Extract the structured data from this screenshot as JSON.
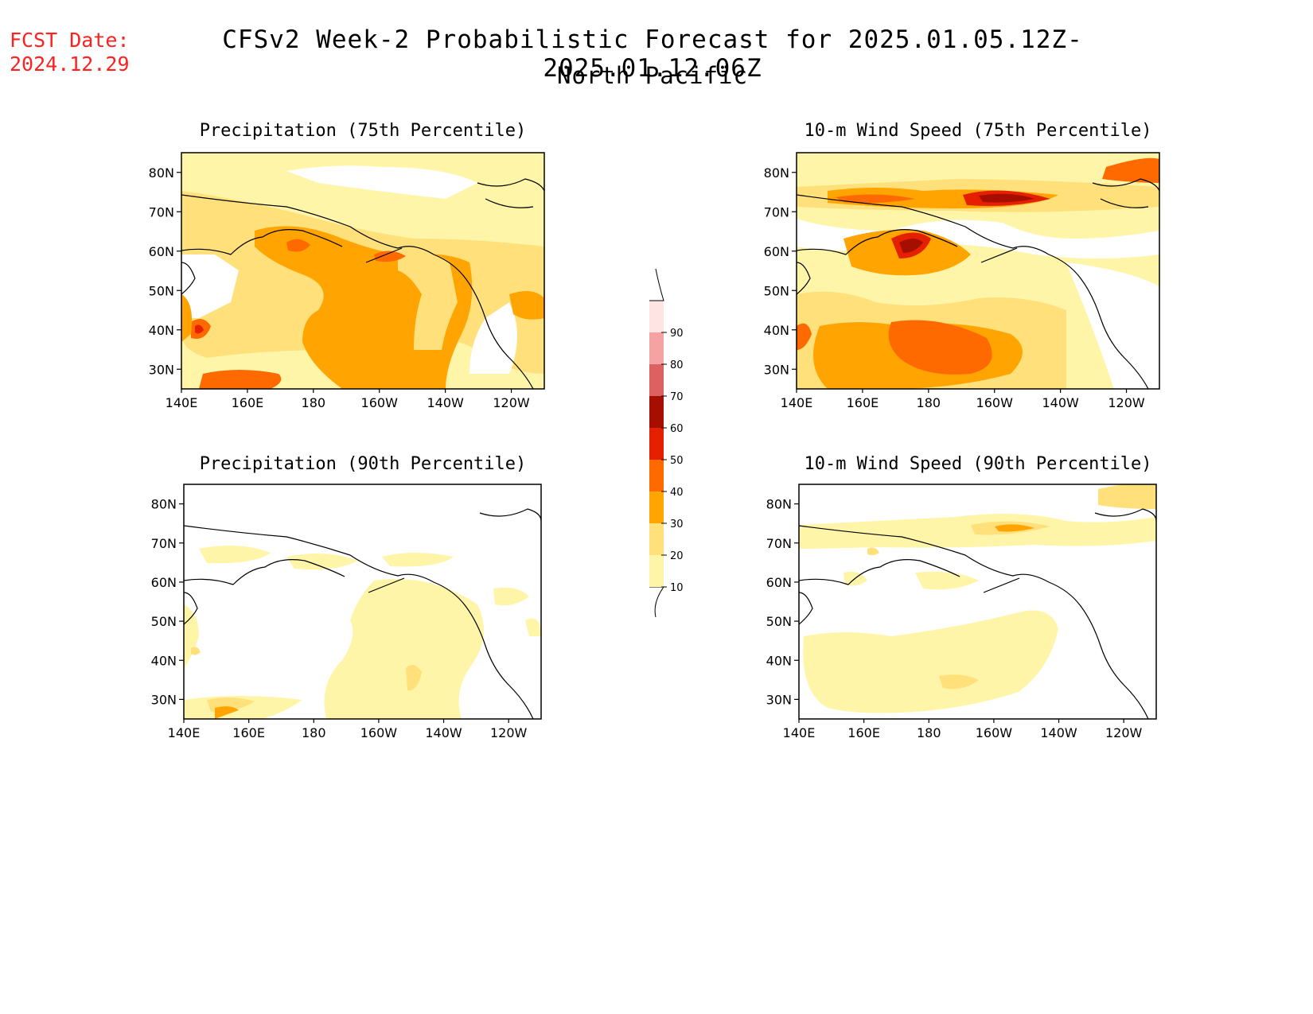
{
  "header": {
    "fcst_label": "FCST Date:",
    "fcst_date": "2024.12.29",
    "title": "CFSv2 Week-2 Probabilistic Forecast for 2025.01.05.12Z-2025.01.12.06Z",
    "subtitle": "North Pacific"
  },
  "axes": {
    "lat_labels": [
      "80N",
      "70N",
      "60N",
      "50N",
      "40N",
      "30N"
    ],
    "lon_labels": [
      "140E",
      "160E",
      "180",
      "160W",
      "140W",
      "120W"
    ]
  },
  "panels": [
    {
      "title": "Precipitation (75th Percentile)"
    },
    {
      "title": "10-m Wind Speed (75th Percentile)"
    },
    {
      "title": "Precipitation (90th Percentile)"
    },
    {
      "title": "10-m Wind Speed (90th Percentile)"
    }
  ],
  "colorbar": {
    "levels": [
      "10",
      "20",
      "30",
      "40",
      "50",
      "60",
      "70",
      "80",
      "90"
    ],
    "colors": [
      "#fff5a8",
      "#ffe07a",
      "#ffa400",
      "#ff6a00",
      "#e42000",
      "#a50e00",
      "#de6161",
      "#f5a2a2",
      "#ffe4e4"
    ]
  }
}
